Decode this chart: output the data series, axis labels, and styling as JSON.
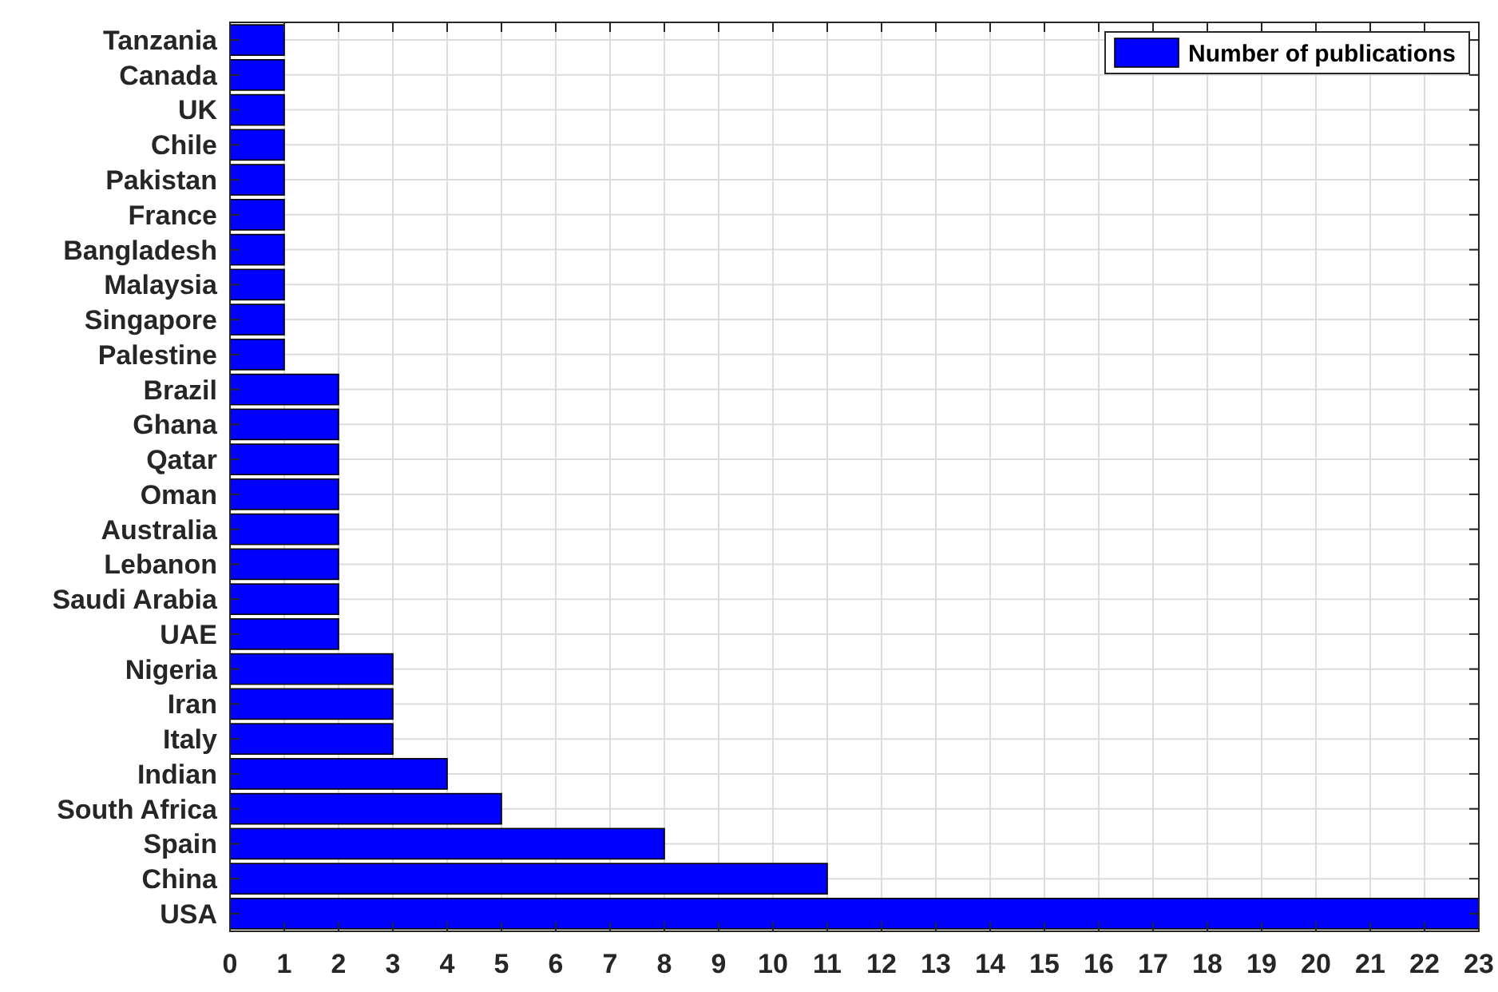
{
  "chart_data": {
    "type": "bar",
    "orientation": "horizontal",
    "categories": [
      "Tanzania",
      "Canada",
      "UK",
      "Chile",
      "Pakistan",
      "France",
      "Bangladesh",
      "Malaysia",
      "Singapore",
      "Palestine",
      "Brazil",
      "Ghana",
      "Qatar",
      "Oman",
      "Australia",
      "Lebanon",
      "Saudi Arabia",
      "UAE",
      "Nigeria",
      "Iran",
      "Italy",
      "Indian",
      "South Africa",
      "Spain",
      "China",
      "USA"
    ],
    "series": [
      {
        "name": "Number of publications",
        "color": "#0000ff",
        "values": [
          1,
          1,
          1,
          1,
          1,
          1,
          1,
          1,
          1,
          1,
          2,
          2,
          2,
          2,
          2,
          2,
          2,
          2,
          3,
          3,
          3,
          4,
          5,
          8,
          11,
          23
        ]
      }
    ],
    "xlim": [
      0,
      23
    ],
    "xticks": [
      0,
      1,
      2,
      3,
      4,
      5,
      6,
      7,
      8,
      9,
      10,
      11,
      12,
      13,
      14,
      15,
      16,
      17,
      18,
      19,
      20,
      21,
      22,
      23
    ],
    "grid": true,
    "legend": "top right"
  }
}
